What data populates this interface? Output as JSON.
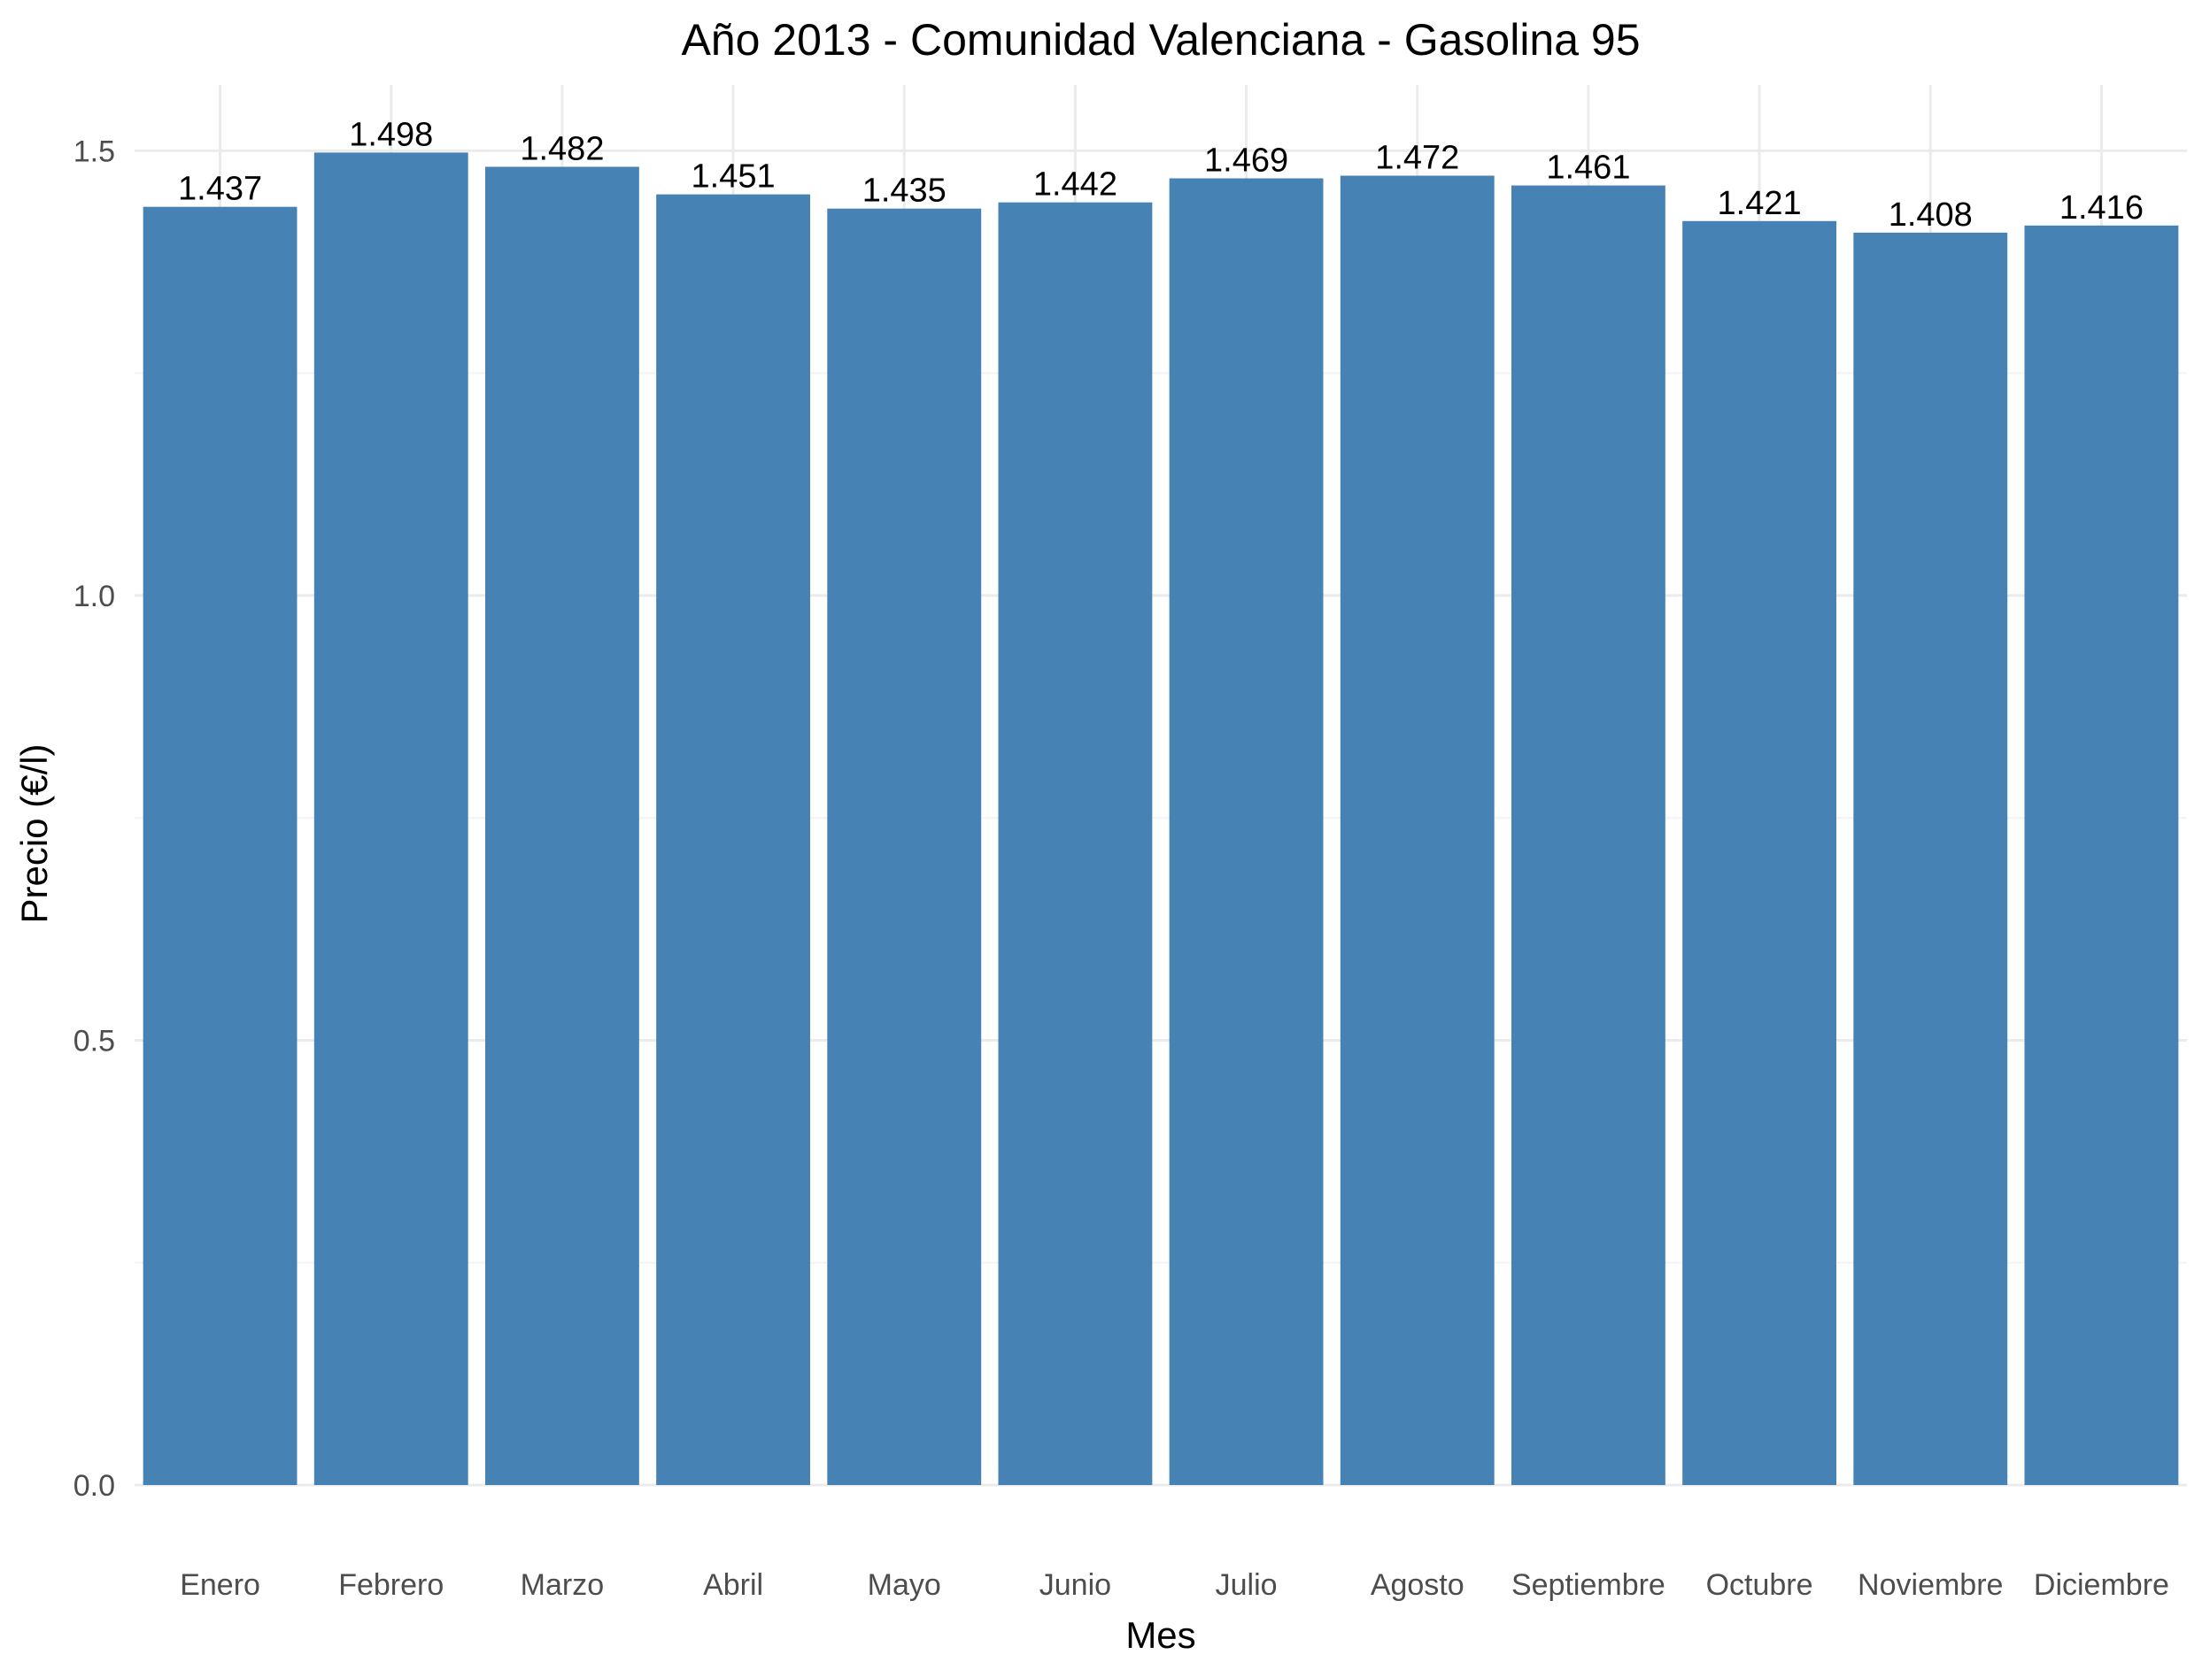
{
  "chart_data": {
    "type": "bar",
    "title": "Año 2013 - Comunidad Valenciana - Gasolina 95",
    "xlabel": "Mes",
    "ylabel": "Precio (€/l)",
    "categories": [
      "Enero",
      "Febrero",
      "Marzo",
      "Abril",
      "Mayo",
      "Junio",
      "Julio",
      "Agosto",
      "Septiembre",
      "Octubre",
      "Noviembre",
      "Diciembre"
    ],
    "values": [
      1.437,
      1.498,
      1.482,
      1.451,
      1.435,
      1.442,
      1.469,
      1.472,
      1.461,
      1.421,
      1.408,
      1.416
    ],
    "data_labels": [
      "1.437",
      "1.498",
      "1.482",
      "1.451",
      "1.435",
      "1.442",
      "1.469",
      "1.472",
      "1.461",
      "1.421",
      "1.408",
      "1.416"
    ],
    "yticks": [
      0.0,
      0.5,
      1.0,
      1.5
    ],
    "ytick_labels": [
      "0.0",
      "0.5",
      "1.0",
      "1.5"
    ],
    "ylim": [
      0,
      1.574
    ],
    "grid": true,
    "legend": "none",
    "bar_color": "#4682b4"
  }
}
